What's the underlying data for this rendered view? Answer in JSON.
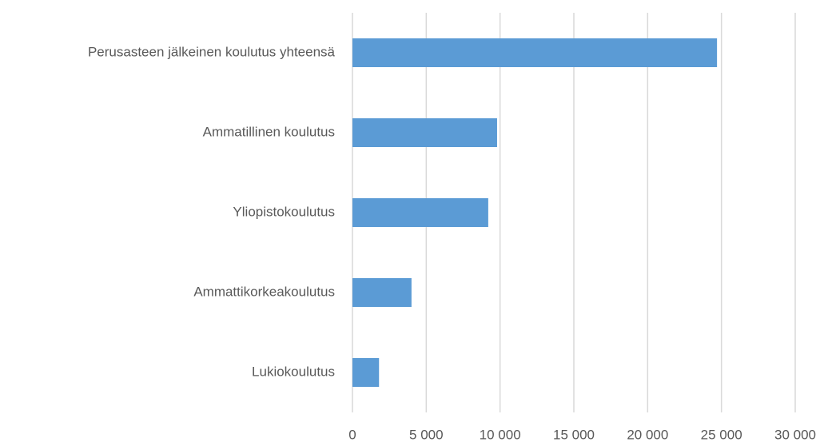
{
  "chart_data": {
    "type": "hbar",
    "categories": [
      "Perusasteen jälkeinen koulutus yhteensä",
      "Ammatillinen koulutus",
      "Yliopistokoulutus",
      "Ammattikorkeakoulutus",
      "Lukiokoulutus"
    ],
    "values": [
      24700,
      9800,
      9200,
      4000,
      1800
    ],
    "color": "#5b9bd5",
    "xlim": [
      0,
      30000
    ],
    "xticks": [
      0,
      {
        "value": 5000,
        "label": "5 000"
      },
      {
        "value": 10000,
        "label": "10 000"
      },
      {
        "value": 15000,
        "label": "15 000"
      },
      {
        "value": 20000,
        "label": "20 000"
      },
      {
        "value": 25000,
        "label": "25 000"
      },
      {
        "value": 30000,
        "label": "30 000"
      }
    ],
    "grid": true
  }
}
